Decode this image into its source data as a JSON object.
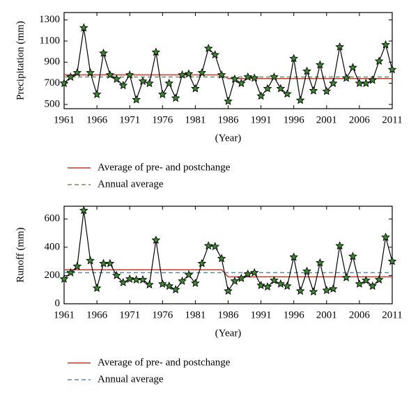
{
  "chart_data": [
    {
      "type": "line",
      "ylabel": "Precipitation (mm)",
      "xlabel": "(Year)",
      "x": [
        1961,
        1962,
        1963,
        1964,
        1965,
        1966,
        1967,
        1968,
        1969,
        1970,
        1971,
        1972,
        1973,
        1974,
        1975,
        1976,
        1977,
        1978,
        1979,
        1980,
        1981,
        1982,
        1983,
        1984,
        1985,
        1986,
        1987,
        1988,
        1989,
        1990,
        1991,
        1992,
        1993,
        1994,
        1995,
        1996,
        1997,
        1998,
        1999,
        2000,
        2001,
        2002,
        2003,
        2004,
        2005,
        2006,
        2007,
        2008,
        2009,
        2010,
        2011
      ],
      "values": [
        700,
        760,
        800,
        1225,
        800,
        595,
        985,
        780,
        740,
        680,
        780,
        545,
        720,
        700,
        995,
        595,
        700,
        560,
        780,
        790,
        650,
        800,
        1030,
        970,
        780,
        530,
        740,
        700,
        760,
        750,
        580,
        650,
        760,
        650,
        600,
        935,
        540,
        815,
        630,
        875,
        625,
        700,
        1045,
        750,
        850,
        700,
        700,
        730,
        910,
        1065,
        830
      ],
      "color": "#000000",
      "marker_color": "#3a8a2e",
      "series": [
        {
          "name": "Average of pre- and postchange",
          "color": "#c0392b",
          "linestyle": "solid",
          "values": [
            780,
            780,
            780,
            780,
            780,
            780,
            780,
            780,
            780,
            780,
            780,
            780,
            780,
            780,
            780,
            780,
            780,
            780,
            780,
            780,
            780,
            780,
            780,
            780,
            780,
            745,
            745,
            745,
            745,
            745,
            745,
            745,
            745,
            745,
            745,
            745,
            745,
            745,
            745,
            745,
            745,
            745,
            745,
            745,
            745,
            745,
            745,
            745,
            745,
            745,
            745
          ]
        },
        {
          "name": "Annual average",
          "color": "#6b8e5a",
          "linestyle": "dashed",
          "values": [
            760,
            760,
            760,
            760,
            760,
            760,
            760,
            760,
            760,
            760,
            760,
            760,
            760,
            760,
            760,
            760,
            760,
            760,
            760,
            760,
            760,
            760,
            760,
            760,
            760,
            760,
            760,
            760,
            760,
            760,
            760,
            760,
            760,
            760,
            760,
            760,
            760,
            760,
            760,
            760,
            760,
            760,
            760,
            760,
            760,
            760,
            760,
            760,
            760,
            760,
            760
          ]
        }
      ],
      "xlim": [
        1961,
        2011
      ],
      "xticks": [
        1961,
        1966,
        1971,
        1976,
        1981,
        1986,
        1991,
        1996,
        2001,
        2006,
        2011
      ],
      "ylim": [
        460,
        1370
      ],
      "yticks": [
        500,
        700,
        900,
        1100,
        1300
      ]
    },
    {
      "type": "line",
      "ylabel": "Runoff (mm)",
      "xlabel": "(Year)",
      "x": [
        1961,
        1962,
        1963,
        1964,
        1965,
        1966,
        1967,
        1968,
        1969,
        1970,
        1971,
        1972,
        1973,
        1974,
        1975,
        1976,
        1977,
        1978,
        1979,
        1980,
        1981,
        1982,
        1983,
        1984,
        1985,
        1986,
        1987,
        1988,
        1989,
        1990,
        1991,
        1992,
        1993,
        1994,
        1995,
        1996,
        1997,
        1998,
        1999,
        2000,
        2001,
        2002,
        2003,
        2004,
        2005,
        2006,
        2007,
        2008,
        2009,
        2010,
        2011
      ],
      "values": [
        175,
        220,
        265,
        660,
        305,
        110,
        285,
        285,
        200,
        150,
        175,
        170,
        170,
        135,
        450,
        140,
        125,
        100,
        160,
        205,
        145,
        285,
        410,
        405,
        320,
        90,
        160,
        180,
        210,
        220,
        130,
        120,
        165,
        140,
        125,
        330,
        90,
        230,
        85,
        290,
        95,
        105,
        410,
        185,
        335,
        140,
        165,
        125,
        170,
        470,
        300
      ],
      "color": "#000000",
      "marker_color": "#3a8a2e",
      "series": [
        {
          "name": "Average of pre- and postchange",
          "color": "#c0392b",
          "linestyle": "solid",
          "values": [
            240,
            240,
            240,
            240,
            240,
            240,
            240,
            240,
            240,
            240,
            240,
            240,
            240,
            240,
            240,
            240,
            240,
            240,
            240,
            240,
            240,
            240,
            240,
            240,
            240,
            190,
            190,
            190,
            190,
            190,
            190,
            190,
            190,
            190,
            190,
            190,
            190,
            190,
            190,
            190,
            190,
            190,
            190,
            190,
            190,
            190,
            190,
            190,
            190,
            190,
            190
          ]
        },
        {
          "name": "Annual average",
          "color": "#5a8aa0",
          "linestyle": "dashed",
          "values": [
            220,
            220,
            220,
            220,
            220,
            220,
            220,
            220,
            220,
            220,
            220,
            220,
            220,
            220,
            220,
            220,
            220,
            220,
            220,
            220,
            220,
            220,
            220,
            220,
            220,
            220,
            220,
            220,
            220,
            220,
            220,
            220,
            220,
            220,
            220,
            220,
            220,
            220,
            220,
            220,
            220,
            220,
            220,
            220,
            220,
            220,
            220,
            220,
            220,
            220,
            220
          ]
        }
      ],
      "xlim": [
        1961,
        2011
      ],
      "xticks": [
        1961,
        1966,
        1971,
        1976,
        1981,
        1986,
        1991,
        1996,
        2001,
        2006,
        2011
      ],
      "ylim": [
        0,
        690
      ],
      "yticks": [
        0,
        200,
        400,
        600
      ]
    }
  ]
}
